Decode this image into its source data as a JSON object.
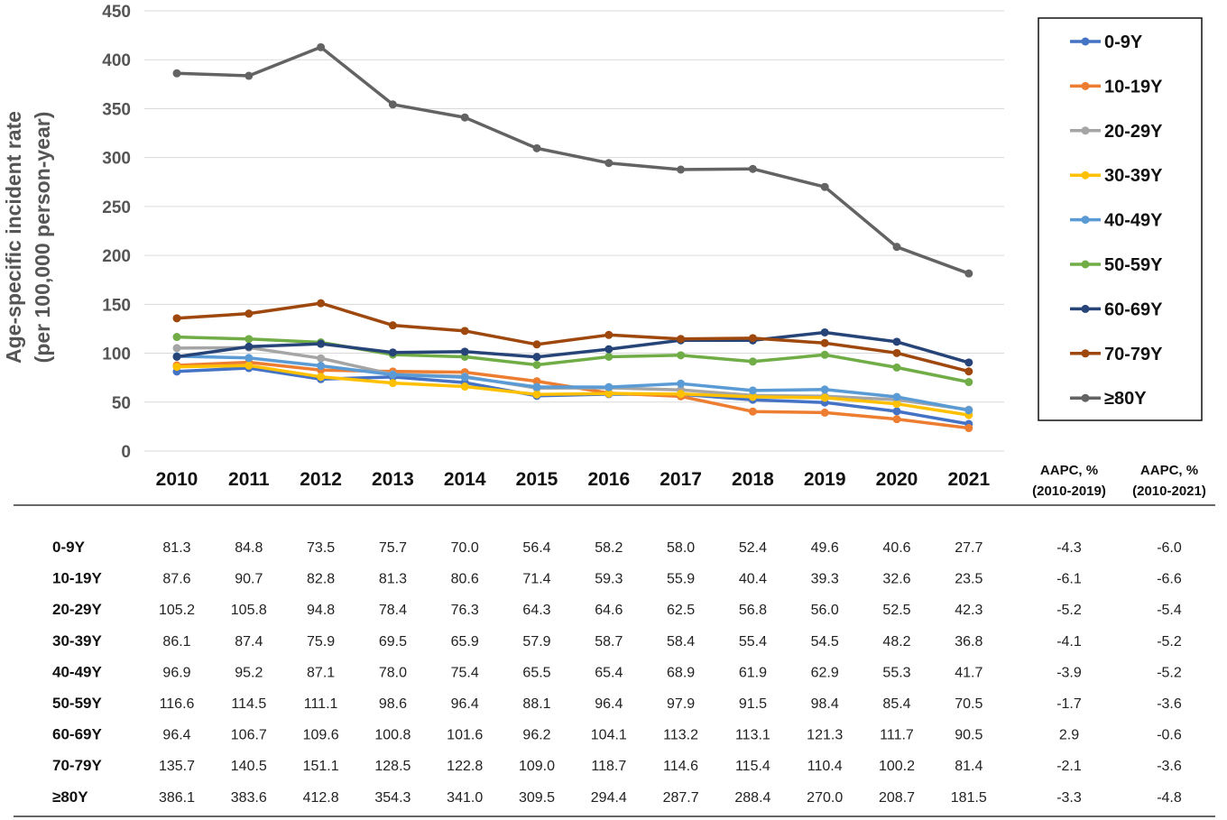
{
  "chart_data": {
    "type": "line",
    "ylabel_line1": "Age-specific incident rate",
    "ylabel_line2": "(per 100,000 person-year)",
    "ylim": [
      0,
      450
    ],
    "yticks": [
      0,
      50,
      100,
      150,
      200,
      250,
      300,
      350,
      400,
      450
    ],
    "grid": true,
    "legend_position": "right",
    "categories": [
      "2010",
      "2011",
      "2012",
      "2013",
      "2014",
      "2015",
      "2016",
      "2017",
      "2018",
      "2019",
      "2020",
      "2021"
    ],
    "series": [
      {
        "name": "0-9Y",
        "color": "#4472C4",
        "values": [
          81.3,
          84.8,
          73.5,
          75.7,
          70.0,
          56.4,
          58.2,
          58.0,
          52.4,
          49.6,
          40.6,
          27.7
        ],
        "aapc_2019": "-4.3",
        "aapc_2021": "-6.0"
      },
      {
        "name": "10-19Y",
        "color": "#ED7D31",
        "values": [
          87.6,
          90.7,
          82.8,
          81.3,
          80.6,
          71.4,
          59.3,
          55.9,
          40.4,
          39.3,
          32.6,
          23.5
        ],
        "aapc_2019": "-6.1",
        "aapc_2021": "-6.6"
      },
      {
        "name": "20-29Y",
        "color": "#A5A5A5",
        "values": [
          105.2,
          105.8,
          94.8,
          78.4,
          76.3,
          64.3,
          64.6,
          62.5,
          56.8,
          56.0,
          52.5,
          42.3
        ],
        "aapc_2019": "-5.2",
        "aapc_2021": "-5.4"
      },
      {
        "name": "30-39Y",
        "color": "#FFC000",
        "values": [
          86.1,
          87.4,
          75.9,
          69.5,
          65.9,
          57.9,
          58.7,
          58.4,
          55.4,
          54.5,
          48.2,
          36.8
        ],
        "aapc_2019": "-4.1",
        "aapc_2021": "-5.2"
      },
      {
        "name": "40-49Y",
        "color": "#5B9BD5",
        "values": [
          96.9,
          95.2,
          87.1,
          78.0,
          75.4,
          65.5,
          65.4,
          68.9,
          61.9,
          62.9,
          55.3,
          41.7
        ],
        "aapc_2019": "-3.9",
        "aapc_2021": "-5.2"
      },
      {
        "name": "50-59Y",
        "color": "#70AD47",
        "values": [
          116.6,
          114.5,
          111.1,
          98.6,
          96.4,
          88.1,
          96.4,
          97.9,
          91.5,
          98.4,
          85.4,
          70.5
        ],
        "aapc_2019": "-1.7",
        "aapc_2021": "-3.6"
      },
      {
        "name": "60-69Y",
        "color": "#264478",
        "values": [
          96.4,
          106.7,
          109.6,
          100.8,
          101.6,
          96.2,
          104.1,
          113.2,
          113.1,
          121.3,
          111.7,
          90.5
        ],
        "aapc_2019": "2.9",
        "aapc_2021": "-0.6"
      },
      {
        "name": "70-79Y",
        "color": "#9E480E",
        "values": [
          135.7,
          140.5,
          151.1,
          128.5,
          122.8,
          109.0,
          118.7,
          114.6,
          115.4,
          110.4,
          100.2,
          81.4
        ],
        "aapc_2019": "-2.1",
        "aapc_2021": "-3.6"
      },
      {
        "name": "≥80Y",
        "color": "#636363",
        "values": [
          386.1,
          383.6,
          412.8,
          354.3,
          341.0,
          309.5,
          294.4,
          287.7,
          288.4,
          270.0,
          208.7,
          181.5
        ],
        "aapc_2019": "-3.3",
        "aapc_2021": "-4.8"
      }
    ],
    "aapc_headers": [
      {
        "line1": "AAPC, %",
        "line2": "(2010-2019)"
      },
      {
        "line1": "AAPC, %",
        "line2": "(2010-2021)"
      }
    ]
  }
}
